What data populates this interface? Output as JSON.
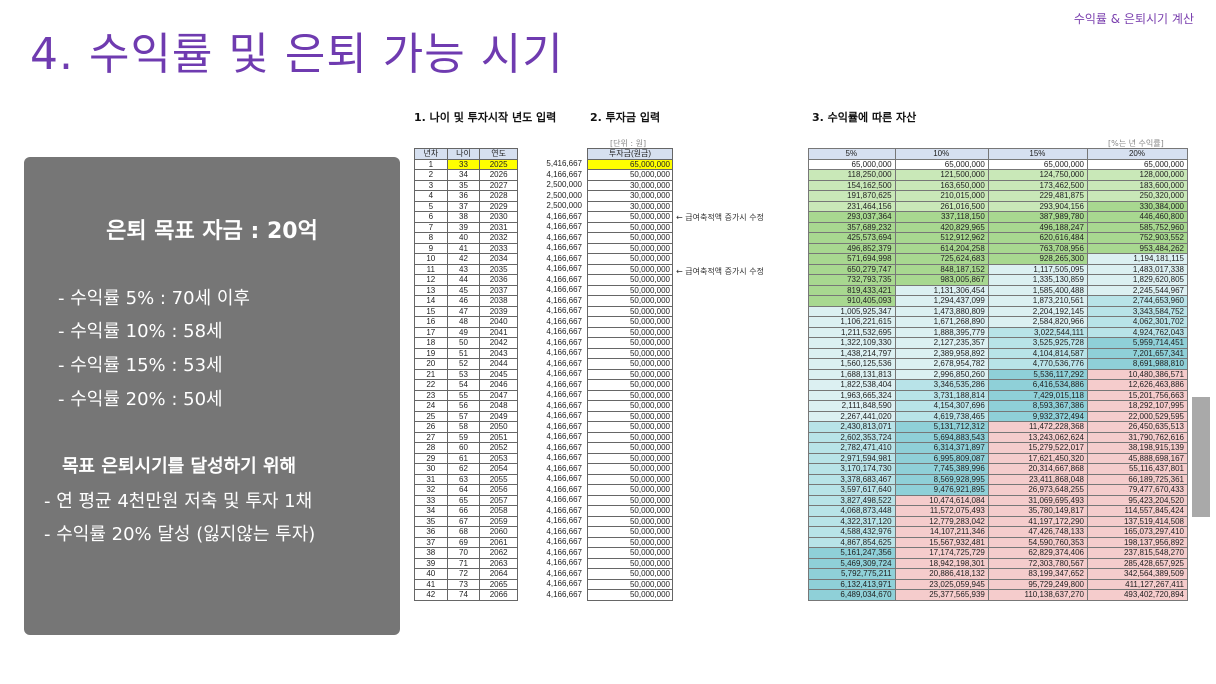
{
  "header": {
    "corner": "수익률 & 은퇴시기 계산",
    "title": "4. 수익률 및 은퇴 가능 시기"
  },
  "panel": {
    "goal": "은퇴 목표 자금 : 20억",
    "r5": "- 수익률  5% : 70세 이후",
    "r10": "- 수익률 10% : 58세",
    "r15": "- 수익률 15% : 53세",
    "r20": "- 수익률 20% : 50세",
    "sub": "목표 은퇴시기를 달성하기 위해",
    "b1": "- 연 평균 4천만원 저축 및 투자 1채",
    "b2": "- 수익률 20% 달성 (잃지않는 투자)"
  },
  "sections": {
    "s1": "1. 나이 및 투자시작 년도 입력",
    "s2": "2. 투자금 입력",
    "s3": "3. 수익률에 따른 자산"
  },
  "unit_note": "[단위 : 원]",
  "rate_note": "[%는 년 수익률]",
  "side_note": "← 급여축적액 증가시 수정",
  "colors": {
    "title": "#6f3bb0",
    "panel": "#767676",
    "header": "#d6e0f0",
    "highlight": "#ffff00",
    "green_dark": "#a8d890",
    "green_mid": "#c9e8b8",
    "green_light": "#e3f3d8",
    "cyan_light": "#dcf0f2",
    "cyan": "#b8e3e8",
    "teal": "#8fd0d8",
    "pink": "#f5cccc"
  },
  "table": {
    "headers": {
      "year_no": "년차",
      "age": "나이",
      "year": "연도",
      "invest": "투자금(원금)"
    },
    "rates": [
      "5%",
      "10%",
      "15%",
      "20%"
    ],
    "rows": [
      {
        "n": "1",
        "age": "33",
        "year": "2025",
        "v": "5,416,667",
        "inv": "65,000,000",
        "a": [
          "65,000,000",
          "65,000,000",
          "65,000,000",
          "65,000,000"
        ],
        "c": [
          "g2",
          "g2",
          "g2",
          "g2"
        ]
      },
      {
        "n": "2",
        "age": "34",
        "year": "2026",
        "v": "4,166,667",
        "inv": "50,000,000",
        "a": [
          "118,250,000",
          "121,500,000",
          "124,750,000",
          "128,000,000"
        ],
        "c": [
          "g2",
          "g2",
          "g2",
          "g2"
        ]
      },
      {
        "n": "3",
        "age": "35",
        "year": "2027",
        "v": "2,500,000",
        "inv": "30,000,000",
        "a": [
          "154,162,500",
          "163,650,000",
          "173,462,500",
          "183,600,000"
        ],
        "c": [
          "g2",
          "g2",
          "g2",
          "g2"
        ]
      },
      {
        "n": "4",
        "age": "36",
        "year": "2028",
        "v": "2,500,000",
        "inv": "30,000,000",
        "a": [
          "191,870,625",
          "210,015,000",
          "229,481,875",
          "250,320,000"
        ],
        "c": [
          "g2",
          "g2",
          "g2",
          "g2"
        ]
      },
      {
        "n": "5",
        "age": "37",
        "year": "2029",
        "v": "2,500,000",
        "inv": "30,000,000",
        "a": [
          "231,464,156",
          "261,016,500",
          "293,904,156",
          "330,384,000"
        ],
        "c": [
          "g2",
          "g2",
          "g2",
          "g1"
        ]
      },
      {
        "n": "6",
        "age": "38",
        "year": "2030",
        "v": "4,166,667",
        "inv": "50,000,000",
        "a": [
          "293,037,364",
          "337,118,150",
          "387,989,780",
          "446,460,800"
        ],
        "c": [
          "g1",
          "g1",
          "g1",
          "g1"
        ]
      },
      {
        "n": "7",
        "age": "39",
        "year": "2031",
        "v": "4,166,667",
        "inv": "50,000,000",
        "a": [
          "357,689,232",
          "420,829,965",
          "496,188,247",
          "585,752,960"
        ],
        "c": [
          "g1",
          "g1",
          "g1",
          "g1"
        ]
      },
      {
        "n": "8",
        "age": "40",
        "year": "2032",
        "v": "4,166,667",
        "inv": "50,000,000",
        "a": [
          "425,573,694",
          "512,912,962",
          "620,616,484",
          "752,903,552"
        ],
        "c": [
          "g1",
          "g1",
          "g1",
          "g1"
        ]
      },
      {
        "n": "9",
        "age": "41",
        "year": "2033",
        "v": "4,166,667",
        "inv": "50,000,000",
        "a": [
          "496,852,379",
          "614,204,258",
          "763,708,956",
          "953,484,262"
        ],
        "c": [
          "g1",
          "g1",
          "g1",
          "g1"
        ]
      },
      {
        "n": "10",
        "age": "42",
        "year": "2034",
        "v": "4,166,667",
        "inv": "50,000,000",
        "a": [
          "571,694,998",
          "725,624,683",
          "928,265,300",
          "1,194,181,115"
        ],
        "c": [
          "g1",
          "g1",
          "g1",
          "c1"
        ]
      },
      {
        "n": "11",
        "age": "43",
        "year": "2035",
        "v": "4,166,667",
        "inv": "50,000,000",
        "a": [
          "650,279,747",
          "848,187,152",
          "1,117,505,095",
          "1,483,017,338"
        ],
        "c": [
          "g1",
          "g1",
          "c1",
          "c1"
        ]
      },
      {
        "n": "12",
        "age": "44",
        "year": "2036",
        "v": "4,166,667",
        "inv": "50,000,000",
        "a": [
          "732,793,735",
          "983,005,867",
          "1,335,130,859",
          "1,829,620,805"
        ],
        "c": [
          "g1",
          "g1",
          "c1",
          "c1"
        ]
      },
      {
        "n": "13",
        "age": "45",
        "year": "2037",
        "v": "4,166,667",
        "inv": "50,000,000",
        "a": [
          "819,433,421",
          "1,131,306,454",
          "1,585,400,488",
          "2,245,544,967"
        ],
        "c": [
          "g1",
          "c1",
          "c1",
          "c1"
        ]
      },
      {
        "n": "14",
        "age": "46",
        "year": "2038",
        "v": "4,166,667",
        "inv": "50,000,000",
        "a": [
          "910,405,093",
          "1,294,437,099",
          "1,873,210,561",
          "2,744,653,960"
        ],
        "c": [
          "g1",
          "c1",
          "c1",
          "c2"
        ]
      },
      {
        "n": "15",
        "age": "47",
        "year": "2039",
        "v": "4,166,667",
        "inv": "50,000,000",
        "a": [
          "1,005,925,347",
          "1,473,880,809",
          "2,204,192,145",
          "3,343,584,752"
        ],
        "c": [
          "c1",
          "c1",
          "c1",
          "c2"
        ]
      },
      {
        "n": "16",
        "age": "48",
        "year": "2040",
        "v": "4,166,667",
        "inv": "50,000,000",
        "a": [
          "1,106,221,615",
          "1,671,268,890",
          "2,584,820,966",
          "4,062,301,702"
        ],
        "c": [
          "c1",
          "c1",
          "c1",
          "c2"
        ]
      },
      {
        "n": "17",
        "age": "49",
        "year": "2041",
        "v": "4,166,667",
        "inv": "50,000,000",
        "a": [
          "1,211,532,695",
          "1,888,395,779",
          "3,022,544,111",
          "4,924,762,043"
        ],
        "c": [
          "c1",
          "c1",
          "c2",
          "c2"
        ]
      },
      {
        "n": "18",
        "age": "50",
        "year": "2042",
        "v": "4,166,667",
        "inv": "50,000,000",
        "a": [
          "1,322,109,330",
          "2,127,235,357",
          "3,525,925,728",
          "5,959,714,451"
        ],
        "c": [
          "c1",
          "c1",
          "c2",
          "c3"
        ]
      },
      {
        "n": "19",
        "age": "51",
        "year": "2043",
        "v": "4,166,667",
        "inv": "50,000,000",
        "a": [
          "1,438,214,797",
          "2,389,958,892",
          "4,104,814,587",
          "7,201,657,341"
        ],
        "c": [
          "c1",
          "c1",
          "c2",
          "c3"
        ]
      },
      {
        "n": "20",
        "age": "52",
        "year": "2044",
        "v": "4,166,667",
        "inv": "50,000,000",
        "a": [
          "1,560,125,536",
          "2,678,954,782",
          "4,770,536,776",
          "8,691,988,810"
        ],
        "c": [
          "c1",
          "c1",
          "c2",
          "c3"
        ]
      },
      {
        "n": "21",
        "age": "53",
        "year": "2045",
        "v": "4,166,667",
        "inv": "50,000,000",
        "a": [
          "1,688,131,813",
          "2,996,850,260",
          "5,536,117,292",
          "10,480,386,571"
        ],
        "c": [
          "c1",
          "c1",
          "c3",
          "p"
        ]
      },
      {
        "n": "22",
        "age": "54",
        "year": "2046",
        "v": "4,166,667",
        "inv": "50,000,000",
        "a": [
          "1,822,538,404",
          "3,346,535,286",
          "6,416,534,886",
          "12,626,463,886"
        ],
        "c": [
          "c1",
          "c2",
          "c3",
          "p"
        ]
      },
      {
        "n": "23",
        "age": "55",
        "year": "2047",
        "v": "4,166,667",
        "inv": "50,000,000",
        "a": [
          "1,963,665,324",
          "3,731,188,814",
          "7,429,015,118",
          "15,201,756,663"
        ],
        "c": [
          "c1",
          "c2",
          "c3",
          "p"
        ]
      },
      {
        "n": "24",
        "age": "56",
        "year": "2048",
        "v": "4,166,667",
        "inv": "50,000,000",
        "a": [
          "2,111,848,590",
          "4,154,307,696",
          "8,593,367,386",
          "18,292,107,995"
        ],
        "c": [
          "c1",
          "c2",
          "c3",
          "p"
        ]
      },
      {
        "n": "25",
        "age": "57",
        "year": "2049",
        "v": "4,166,667",
        "inv": "50,000,000",
        "a": [
          "2,267,441,020",
          "4,619,738,465",
          "9,932,372,494",
          "22,000,529,595"
        ],
        "c": [
          "c1",
          "c2",
          "c3",
          "p"
        ]
      },
      {
        "n": "26",
        "age": "58",
        "year": "2050",
        "v": "4,166,667",
        "inv": "50,000,000",
        "a": [
          "2,430,813,071",
          "5,131,712,312",
          "11,472,228,368",
          "26,450,635,513"
        ],
        "c": [
          "c2",
          "c3",
          "p",
          "p"
        ]
      },
      {
        "n": "27",
        "age": "59",
        "year": "2051",
        "v": "4,166,667",
        "inv": "50,000,000",
        "a": [
          "2,602,353,724",
          "5,694,883,543",
          "13,243,062,624",
          "31,790,762,616"
        ],
        "c": [
          "c2",
          "c3",
          "p",
          "p"
        ]
      },
      {
        "n": "28",
        "age": "60",
        "year": "2052",
        "v": "4,166,667",
        "inv": "50,000,000",
        "a": [
          "2,782,471,410",
          "6,314,371,897",
          "15,279,522,017",
          "38,198,915,139"
        ],
        "c": [
          "c2",
          "c3",
          "p",
          "p"
        ]
      },
      {
        "n": "29",
        "age": "61",
        "year": "2053",
        "v": "4,166,667",
        "inv": "50,000,000",
        "a": [
          "2,971,594,981",
          "6,995,809,087",
          "17,621,450,320",
          "45,888,698,167"
        ],
        "c": [
          "c2",
          "c3",
          "p",
          "p"
        ]
      },
      {
        "n": "30",
        "age": "62",
        "year": "2054",
        "v": "4,166,667",
        "inv": "50,000,000",
        "a": [
          "3,170,174,730",
          "7,745,389,996",
          "20,314,667,868",
          "55,116,437,801"
        ],
        "c": [
          "c2",
          "c3",
          "p",
          "p"
        ]
      },
      {
        "n": "31",
        "age": "63",
        "year": "2055",
        "v": "4,166,667",
        "inv": "50,000,000",
        "a": [
          "3,378,683,467",
          "8,569,928,995",
          "23,411,868,048",
          "66,189,725,361"
        ],
        "c": [
          "c2",
          "c3",
          "p",
          "p"
        ]
      },
      {
        "n": "32",
        "age": "64",
        "year": "2056",
        "v": "4,166,667",
        "inv": "50,000,000",
        "a": [
          "3,597,617,640",
          "9,476,921,895",
          "26,973,648,255",
          "79,477,670,433"
        ],
        "c": [
          "c2",
          "c3",
          "p",
          "p"
        ]
      },
      {
        "n": "33",
        "age": "65",
        "year": "2057",
        "v": "4,166,667",
        "inv": "50,000,000",
        "a": [
          "3,827,498,522",
          "10,474,614,084",
          "31,069,695,493",
          "95,423,204,520"
        ],
        "c": [
          "c2",
          "p",
          "p",
          "p"
        ]
      },
      {
        "n": "34",
        "age": "66",
        "year": "2058",
        "v": "4,166,667",
        "inv": "50,000,000",
        "a": [
          "4,068,873,448",
          "11,572,075,493",
          "35,780,149,817",
          "114,557,845,424"
        ],
        "c": [
          "c2",
          "p",
          "p",
          "p"
        ]
      },
      {
        "n": "35",
        "age": "67",
        "year": "2059",
        "v": "4,166,667",
        "inv": "50,000,000",
        "a": [
          "4,322,317,120",
          "12,779,283,042",
          "41,197,172,290",
          "137,519,414,508"
        ],
        "c": [
          "c2",
          "p",
          "p",
          "p"
        ]
      },
      {
        "n": "36",
        "age": "68",
        "year": "2060",
        "v": "4,166,667",
        "inv": "50,000,000",
        "a": [
          "4,588,432,976",
          "14,107,211,346",
          "47,426,748,133",
          "165,073,297,410"
        ],
        "c": [
          "c2",
          "p",
          "p",
          "p"
        ]
      },
      {
        "n": "37",
        "age": "69",
        "year": "2061",
        "v": "4,166,667",
        "inv": "50,000,000",
        "a": [
          "4,867,854,625",
          "15,567,932,481",
          "54,590,760,353",
          "198,137,956,892"
        ],
        "c": [
          "c2",
          "p",
          "p",
          "p"
        ]
      },
      {
        "n": "38",
        "age": "70",
        "year": "2062",
        "v": "4,166,667",
        "inv": "50,000,000",
        "a": [
          "5,161,247,356",
          "17,174,725,729",
          "62,829,374,406",
          "237,815,548,270"
        ],
        "c": [
          "c3",
          "p",
          "p",
          "p"
        ]
      },
      {
        "n": "39",
        "age": "71",
        "year": "2063",
        "v": "4,166,667",
        "inv": "50,000,000",
        "a": [
          "5,469,309,724",
          "18,942,198,301",
          "72,303,780,567",
          "285,428,657,925"
        ],
        "c": [
          "c3",
          "p",
          "p",
          "p"
        ]
      },
      {
        "n": "40",
        "age": "72",
        "year": "2064",
        "v": "4,166,667",
        "inv": "50,000,000",
        "a": [
          "5,792,775,211",
          "20,886,418,132",
          "83,199,347,652",
          "342,564,389,509"
        ],
        "c": [
          "c3",
          "p",
          "p",
          "p"
        ]
      },
      {
        "n": "41",
        "age": "73",
        "year": "2065",
        "v": "4,166,667",
        "inv": "50,000,000",
        "a": [
          "6,132,413,971",
          "23,025,059,945",
          "95,729,249,800",
          "411,127,267,411"
        ],
        "c": [
          "c3",
          "p",
          "p",
          "p"
        ]
      },
      {
        "n": "42",
        "age": "74",
        "year": "2066",
        "v": "4,166,667",
        "inv": "50,000,000",
        "a": [
          "6,489,034,670",
          "25,377,565,939",
          "110,138,637,270",
          "493,402,720,894"
        ],
        "c": [
          "c3",
          "p",
          "p",
          "p"
        ]
      }
    ]
  }
}
